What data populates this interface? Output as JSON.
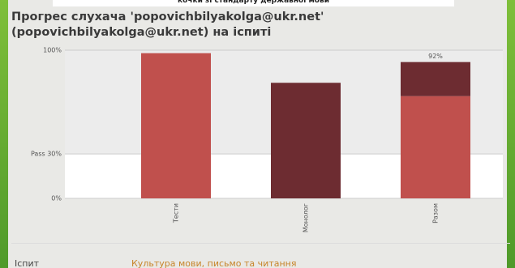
{
  "banner": "кочки зі стандарту державної мови",
  "chart_data": {
    "type": "bar",
    "title": "Прогрес слухача 'popovichbilyakolga@ukr.net' (popovichbilyakolga@ukr.net) на іспиті",
    "categories": [
      "Тести",
      "Монолог",
      "Разом"
    ],
    "series": [
      {
        "color": "#c0504d",
        "values": [
          98,
          null,
          69
        ]
      },
      {
        "color": "#6d2c31",
        "values": [
          null,
          78,
          23
        ]
      }
    ],
    "ylim": [
      0,
      100
    ],
    "yticks": [
      {
        "value": 100,
        "label": "100%"
      },
      {
        "value": 30,
        "label": "Pass 30%"
      },
      {
        "value": 0,
        "label": "0%"
      }
    ],
    "annotations": [
      {
        "category": 2,
        "value": 92,
        "label": "92%"
      }
    ]
  },
  "footer": {
    "left": "Іспит",
    "right": "Культура мови, письмо та читання"
  }
}
